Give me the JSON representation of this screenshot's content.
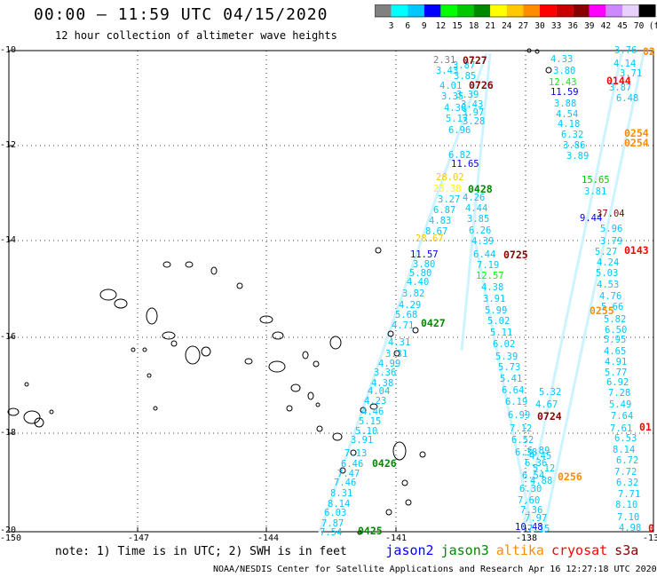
{
  "title": "00:00 – 11:59 UTC 04/15/2020",
  "subtitle": "12 hour collection of altimeter wave heights",
  "colorbar": {
    "colors": [
      "#808080",
      "#00ffff",
      "#00c8ff",
      "#0000ff",
      "#00ff00",
      "#00c800",
      "#008800",
      "#ffff00",
      "#ffc800",
      "#ff8c00",
      "#ff0000",
      "#c80000",
      "#880000",
      "#ff00ff",
      "#cc88ff",
      "#e8d0ff",
      "#000000"
    ],
    "ticks": [
      "3",
      "6",
      "9",
      "12",
      "15",
      "18",
      "21",
      "24",
      "27",
      "30",
      "33",
      "36",
      "39",
      "42",
      "45",
      "70"
    ],
    "unit": "(ft)"
  },
  "axes": {
    "lat_labels": [
      "-10",
      "-12",
      "-14",
      "-16",
      "-18",
      "-20"
    ],
    "lon_labels": [
      "-150",
      "-147",
      "-144",
      "-141",
      "-138",
      "-13"
    ]
  },
  "passes": [
    {
      "id": "p1",
      "label": "0727",
      "color": "#880000"
    },
    {
      "id": "p2",
      "label": "0726",
      "color": "#880000"
    },
    {
      "id": "p3",
      "label": "0144",
      "color": "#ff0000"
    },
    {
      "id": "p4",
      "label": "0254",
      "color": "#ff8c00"
    },
    {
      "id": "p5",
      "label": "0254",
      "color": "#ff8c00"
    },
    {
      "id": "p6",
      "label": "0428",
      "color": "#008800"
    },
    {
      "id": "p7",
      "label": "0725",
      "color": "#880000"
    },
    {
      "id": "p8",
      "label": "0143",
      "color": "#ff0000"
    },
    {
      "id": "p9",
      "label": "0427",
      "color": "#008800"
    },
    {
      "id": "p10",
      "label": "0255",
      "color": "#ff8c00"
    },
    {
      "id": "p11",
      "label": "0724",
      "color": "#880000"
    },
    {
      "id": "p12",
      "label": "01",
      "color": "#ff0000"
    },
    {
      "id": "p13",
      "label": "0426",
      "color": "#008800"
    },
    {
      "id": "p14",
      "label": "0256",
      "color": "#ff8c00"
    },
    {
      "id": "p15",
      "label": "0425",
      "color": "#008800"
    },
    {
      "id": "p16",
      "label": "02",
      "color": "#ff8c00"
    },
    {
      "id": "p17",
      "label": "0",
      "color": "#ff0000"
    }
  ],
  "wave_labels": [
    {
      "v": "2.31",
      "c": "#808080"
    },
    {
      "v": "3.43",
      "c": "#00c8ff"
    },
    {
      "v": "4.01",
      "c": "#00c8ff"
    },
    {
      "v": "3.35",
      "c": "#00c8ff"
    },
    {
      "v": "4.30",
      "c": "#00c8ff"
    },
    {
      "v": "5.17",
      "c": "#00c8ff"
    },
    {
      "v": "6.96",
      "c": "#00c8ff"
    },
    {
      "v": "3.87",
      "c": "#00c8ff"
    },
    {
      "v": "3.85",
      "c": "#00c8ff"
    },
    {
      "v": "3.39",
      "c": "#00c8ff"
    },
    {
      "v": "3.43",
      "c": "#00c8ff"
    },
    {
      "v": "3.97",
      "c": "#00c8ff"
    },
    {
      "v": "3.28",
      "c": "#00c8ff"
    },
    {
      "v": "6.82",
      "c": "#00c8ff"
    },
    {
      "v": "11.65",
      "c": "#0000ff"
    },
    {
      "v": "28.02",
      "c": "#ffc800"
    },
    {
      "v": "23.38",
      "c": "#ffff00"
    },
    {
      "v": "3.27",
      "c": "#00c8ff"
    },
    {
      "v": "6.87",
      "c": "#00c8ff"
    },
    {
      "v": "4.83",
      "c": "#00c8ff"
    },
    {
      "v": "8.67",
      "c": "#00c8ff"
    },
    {
      "v": "28.67",
      "c": "#ffc800"
    },
    {
      "v": "4.26",
      "c": "#00c8ff"
    },
    {
      "v": "4.44",
      "c": "#00c8ff"
    },
    {
      "v": "3.85",
      "c": "#00c8ff"
    },
    {
      "v": "6.26",
      "c": "#00c8ff"
    },
    {
      "v": "4.39",
      "c": "#00c8ff"
    },
    {
      "v": "11.57",
      "c": "#0000ff"
    },
    {
      "v": "3.80",
      "c": "#00c8ff"
    },
    {
      "v": "5.80",
      "c": "#00c8ff"
    },
    {
      "v": "4.40",
      "c": "#00c8ff"
    },
    {
      "v": "3.82",
      "c": "#00c8ff"
    },
    {
      "v": "4.29",
      "c": "#00c8ff"
    },
    {
      "v": "5.68",
      "c": "#00c8ff"
    },
    {
      "v": "4.71",
      "c": "#00c8ff"
    },
    {
      "v": "4.31",
      "c": "#00c8ff"
    },
    {
      "v": "3.31",
      "c": "#00c8ff"
    },
    {
      "v": "4.99",
      "c": "#00c8ff"
    },
    {
      "v": "3.36",
      "c": "#00c8ff"
    },
    {
      "v": "4.38",
      "c": "#00c8ff"
    },
    {
      "v": "4.04",
      "c": "#00c8ff"
    },
    {
      "v": "4.23",
      "c": "#00c8ff"
    },
    {
      "v": "4.46",
      "c": "#00c8ff"
    },
    {
      "v": "5.15",
      "c": "#00c8ff"
    },
    {
      "v": "5.10",
      "c": "#00c8ff"
    },
    {
      "v": "3.91",
      "c": "#00c8ff"
    },
    {
      "v": "7.13",
      "c": "#00c8ff"
    },
    {
      "v": "6.46",
      "c": "#00c8ff"
    },
    {
      "v": "7.47",
      "c": "#00c8ff"
    },
    {
      "v": "7.46",
      "c": "#00c8ff"
    },
    {
      "v": "8.31",
      "c": "#00c8ff"
    },
    {
      "v": "8.14",
      "c": "#00c8ff"
    },
    {
      "v": "6.03",
      "c": "#00c8ff"
    },
    {
      "v": "7.87",
      "c": "#00c8ff"
    },
    {
      "v": "7.54",
      "c": "#00c8ff"
    },
    {
      "v": "6.44",
      "c": "#00c8ff"
    },
    {
      "v": "7.19",
      "c": "#00c8ff"
    },
    {
      "v": "12.57",
      "c": "#00ff00"
    },
    {
      "v": "4.38",
      "c": "#00c8ff"
    },
    {
      "v": "3.91",
      "c": "#00c8ff"
    },
    {
      "v": "5.99",
      "c": "#00c8ff"
    },
    {
      "v": "5.02",
      "c": "#00c8ff"
    },
    {
      "v": "5.11",
      "c": "#00c8ff"
    },
    {
      "v": "6.02",
      "c": "#00c8ff"
    },
    {
      "v": "5.39",
      "c": "#00c8ff"
    },
    {
      "v": "5.73",
      "c": "#00c8ff"
    },
    {
      "v": "5.41",
      "c": "#00c8ff"
    },
    {
      "v": "6.64",
      "c": "#00c8ff"
    },
    {
      "v": "6.19",
      "c": "#00c8ff"
    },
    {
      "v": "6.99",
      "c": "#00c8ff"
    },
    {
      "v": "7.12",
      "c": "#00c8ff"
    },
    {
      "v": "6.52",
      "c": "#00c8ff"
    },
    {
      "v": "6.38",
      "c": "#00c8ff"
    },
    {
      "v": "4.33",
      "c": "#00c8ff"
    },
    {
      "v": "3.80",
      "c": "#00c8ff"
    },
    {
      "v": "12.43",
      "c": "#00ff00"
    },
    {
      "v": "11.59",
      "c": "#0000ff"
    },
    {
      "v": "3.88",
      "c": "#00c8ff"
    },
    {
      "v": "4.54",
      "c": "#00c8ff"
    },
    {
      "v": "4.18",
      "c": "#00c8ff"
    },
    {
      "v": "6.32",
      "c": "#00c8ff"
    },
    {
      "v": "3.86",
      "c": "#00c8ff"
    },
    {
      "v": "3.89",
      "c": "#00c8ff"
    },
    {
      "v": "15.65",
      "c": "#00c800"
    },
    {
      "v": "3.81",
      "c": "#00c8ff"
    },
    {
      "v": "9.44",
      "c": "#0000ff"
    },
    {
      "v": "37.04",
      "c": "#880000"
    },
    {
      "v": "5.96",
      "c": "#00c8ff"
    },
    {
      "v": "3.79",
      "c": "#00c8ff"
    },
    {
      "v": "5.27",
      "c": "#00c8ff"
    },
    {
      "v": "4.24",
      "c": "#00c8ff"
    },
    {
      "v": "5.03",
      "c": "#00c8ff"
    },
    {
      "v": "4.53",
      "c": "#00c8ff"
    },
    {
      "v": "4.76",
      "c": "#00c8ff"
    },
    {
      "v": "5.66",
      "c": "#00c8ff"
    },
    {
      "v": "5.82",
      "c": "#00c8ff"
    },
    {
      "v": "6.50",
      "c": "#00c8ff"
    },
    {
      "v": "5.95",
      "c": "#00c8ff"
    },
    {
      "v": "4.65",
      "c": "#00c8ff"
    },
    {
      "v": "4.91",
      "c": "#00c8ff"
    },
    {
      "v": "5.77",
      "c": "#00c8ff"
    },
    {
      "v": "6.92",
      "c": "#00c8ff"
    },
    {
      "v": "7.28",
      "c": "#00c8ff"
    },
    {
      "v": "5.49",
      "c": "#00c8ff"
    },
    {
      "v": "7.64",
      "c": "#00c8ff"
    },
    {
      "v": "7.61",
      "c": "#00c8ff"
    },
    {
      "v": "6.53",
      "c": "#00c8ff"
    },
    {
      "v": "8.14",
      "c": "#00c8ff"
    },
    {
      "v": "6.72",
      "c": "#00c8ff"
    },
    {
      "v": "7.72",
      "c": "#00c8ff"
    },
    {
      "v": "6.32",
      "c": "#00c8ff"
    },
    {
      "v": "7.71",
      "c": "#00c8ff"
    },
    {
      "v": "8.10",
      "c": "#00c8ff"
    },
    {
      "v": "7.10",
      "c": "#00c8ff"
    },
    {
      "v": "4.98",
      "c": "#00c8ff"
    },
    {
      "v": "3.76",
      "c": "#00c8ff"
    },
    {
      "v": "4.14",
      "c": "#00c8ff"
    },
    {
      "v": "3.71",
      "c": "#00c8ff"
    },
    {
      "v": "3.87",
      "c": "#00c8ff"
    },
    {
      "v": "6.48",
      "c": "#00c8ff"
    },
    {
      "v": "6.89",
      "c": "#00c8ff"
    },
    {
      "v": "6.36",
      "c": "#00c8ff"
    },
    {
      "v": "6.54",
      "c": "#00c8ff"
    },
    {
      "v": "6.30",
      "c": "#00c8ff"
    },
    {
      "v": "7.60",
      "c": "#00c8ff"
    },
    {
      "v": "7.36",
      "c": "#00c8ff"
    },
    {
      "v": "7.97",
      "c": "#00c8ff"
    },
    {
      "v": "7.15",
      "c": "#00c8ff"
    },
    {
      "v": "10.48",
      "c": "#0000ff"
    },
    {
      "v": "4.45",
      "c": "#00c8ff"
    },
    {
      "v": "5.12",
      "c": "#00c8ff"
    },
    {
      "v": "4.88",
      "c": "#00c8ff"
    },
    {
      "v": "5.32",
      "c": "#00c8ff"
    },
    {
      "v": "4.67",
      "c": "#00c8ff"
    }
  ],
  "note": "note: 1) Time is in UTC; 2) SWH is in feet",
  "satellites": [
    {
      "name": "jason2",
      "color": "#0000ff"
    },
    {
      "name": "jason3",
      "color": "#008800"
    },
    {
      "name": "altika",
      "color": "#ff8c00"
    },
    {
      "name": "cryosat",
      "color": "#ff0000"
    },
    {
      "name": "s3a",
      "color": "#880000"
    }
  ],
  "footer": "NOAA/NESDIS Center for Satellite Applications and Research   Apr 16 12:27:18 UTC 2020"
}
